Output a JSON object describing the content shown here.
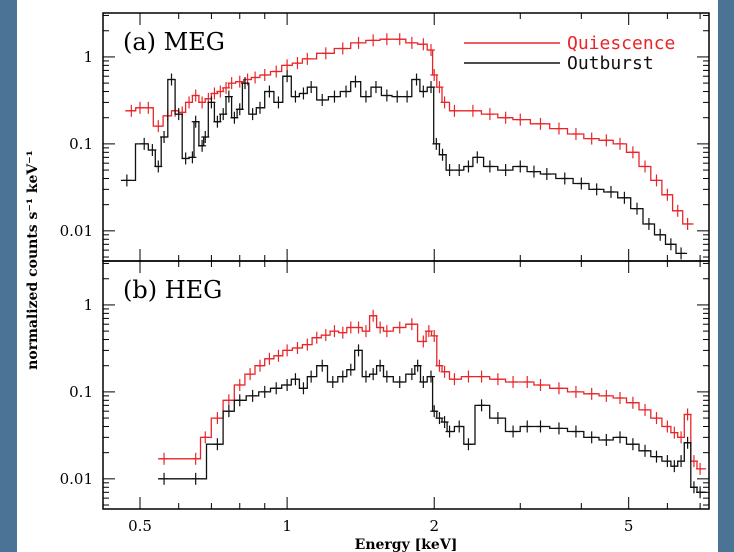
{
  "chart_data": [
    {
      "type": "line",
      "panel_label": "(a) MEG",
      "xscale": "log",
      "yscale": "log",
      "xlim": [
        0.42,
        7.3
      ],
      "ylim": [
        0.0045,
        3.2
      ],
      "ylabel": "normalized counts s⁻¹ keV⁻¹",
      "xlabel": "",
      "legend": {
        "placement": "top-right"
      },
      "series": [
        {
          "name": "Quiescence",
          "color": "#e8262a",
          "x": [
            0.48,
            0.5,
            0.52,
            0.545,
            0.57,
            0.59,
            0.61,
            0.63,
            0.65,
            0.67,
            0.69,
            0.71,
            0.73,
            0.75,
            0.77,
            0.8,
            0.83,
            0.86,
            0.9,
            0.95,
            1.0,
            1.05,
            1.1,
            1.2,
            1.3,
            1.4,
            1.5,
            1.6,
            1.7,
            1.8,
            1.9,
            1.97,
            2.0,
            2.05,
            2.1,
            2.2,
            2.4,
            2.6,
            2.8,
            3.0,
            3.3,
            3.6,
            3.9,
            4.2,
            4.5,
            4.8,
            5.1,
            5.4,
            5.7,
            6.0,
            6.3,
            6.6
          ],
          "y": [
            0.24,
            0.26,
            0.26,
            0.16,
            0.21,
            0.24,
            0.23,
            0.3,
            0.36,
            0.3,
            0.33,
            0.38,
            0.4,
            0.44,
            0.5,
            0.52,
            0.55,
            0.58,
            0.62,
            0.68,
            0.8,
            0.85,
            0.95,
            1.1,
            1.25,
            1.45,
            1.55,
            1.6,
            1.6,
            1.45,
            1.4,
            1.2,
            0.62,
            0.45,
            0.3,
            0.24,
            0.24,
            0.22,
            0.2,
            0.19,
            0.17,
            0.15,
            0.13,
            0.115,
            0.11,
            0.1,
            0.08,
            0.055,
            0.038,
            0.026,
            0.017,
            0.012
          ]
        },
        {
          "name": "Outburst",
          "color": "#111111",
          "x": [
            0.47,
            0.51,
            0.53,
            0.545,
            0.56,
            0.58,
            0.6,
            0.62,
            0.64,
            0.65,
            0.67,
            0.68,
            0.7,
            0.72,
            0.74,
            0.76,
            0.78,
            0.8,
            0.82,
            0.85,
            0.88,
            0.92,
            0.96,
            1.0,
            1.04,
            1.08,
            1.12,
            1.18,
            1.25,
            1.32,
            1.38,
            1.45,
            1.52,
            1.6,
            1.68,
            1.76,
            1.84,
            1.9,
            1.97,
            2.02,
            2.08,
            2.15,
            2.25,
            2.35,
            2.45,
            2.6,
            2.8,
            3.0,
            3.2,
            3.4,
            3.7,
            4.0,
            4.3,
            4.6,
            4.9,
            5.2,
            5.5,
            5.8,
            6.1,
            6.4
          ],
          "y": [
            0.038,
            0.1,
            0.085,
            0.055,
            0.12,
            0.55,
            0.22,
            0.068,
            0.07,
            0.18,
            0.095,
            0.12,
            0.3,
            0.18,
            0.22,
            0.35,
            0.2,
            0.25,
            0.5,
            0.22,
            0.26,
            0.4,
            0.3,
            0.6,
            0.35,
            0.38,
            0.45,
            0.32,
            0.35,
            0.4,
            0.52,
            0.35,
            0.45,
            0.36,
            0.35,
            0.35,
            0.55,
            0.4,
            0.45,
            0.1,
            0.075,
            0.05,
            0.05,
            0.055,
            0.07,
            0.055,
            0.05,
            0.055,
            0.048,
            0.045,
            0.04,
            0.035,
            0.03,
            0.028,
            0.024,
            0.018,
            0.012,
            0.009,
            0.007,
            0.0055
          ]
        }
      ],
      "y_ticks": [
        {
          "value": 0.01,
          "label": "0.01"
        },
        {
          "value": 0.1,
          "label": "0.1"
        },
        {
          "value": 1,
          "label": "1"
        }
      ]
    },
    {
      "type": "line",
      "panel_label": "(b) HEG",
      "xscale": "log",
      "yscale": "log",
      "xlim": [
        0.42,
        7.3
      ],
      "ylim": [
        0.0045,
        3.2
      ],
      "ylabel": "",
      "xlabel": "Energy [keV]",
      "series": [
        {
          "name": "Quiescence",
          "color": "#e8262a",
          "x": [
            0.56,
            0.65,
            0.68,
            0.72,
            0.76,
            0.8,
            0.84,
            0.88,
            0.92,
            0.96,
            1.0,
            1.05,
            1.1,
            1.15,
            1.2,
            1.25,
            1.3,
            1.35,
            1.4,
            1.45,
            1.5,
            1.55,
            1.6,
            1.7,
            1.8,
            1.9,
            1.95,
            2.0,
            2.05,
            2.1,
            2.2,
            2.35,
            2.5,
            2.7,
            2.9,
            3.1,
            3.3,
            3.6,
            3.9,
            4.2,
            4.5,
            4.8,
            5.1,
            5.4,
            5.7,
            6.0,
            6.2,
            6.4,
            6.6,
            6.8,
            7.0
          ],
          "y": [
            0.017,
            0.017,
            0.03,
            0.05,
            0.08,
            0.12,
            0.16,
            0.2,
            0.24,
            0.26,
            0.3,
            0.32,
            0.35,
            0.42,
            0.45,
            0.5,
            0.48,
            0.55,
            0.55,
            0.5,
            0.75,
            0.55,
            0.5,
            0.55,
            0.6,
            0.38,
            0.5,
            0.44,
            0.2,
            0.17,
            0.14,
            0.15,
            0.15,
            0.14,
            0.13,
            0.13,
            0.12,
            0.11,
            0.1,
            0.095,
            0.09,
            0.085,
            0.075,
            0.062,
            0.05,
            0.04,
            0.034,
            0.03,
            0.055,
            0.016,
            0.013
          ]
        },
        {
          "name": "Outburst",
          "color": "#111111",
          "x": [
            0.56,
            0.65,
            0.72,
            0.76,
            0.8,
            0.85,
            0.9,
            0.95,
            1.0,
            1.04,
            1.08,
            1.12,
            1.18,
            1.24,
            1.3,
            1.35,
            1.4,
            1.45,
            1.5,
            1.55,
            1.6,
            1.7,
            1.8,
            1.85,
            1.9,
            1.97,
            2.0,
            2.05,
            2.1,
            2.15,
            2.25,
            2.35,
            2.5,
            2.7,
            2.9,
            3.1,
            3.3,
            3.6,
            3.9,
            4.2,
            4.5,
            4.8,
            5.1,
            5.4,
            5.7,
            6.0,
            6.2,
            6.4,
            6.6,
            6.8,
            7.0
          ],
          "y": [
            0.01,
            0.01,
            0.025,
            0.06,
            0.08,
            0.09,
            0.1,
            0.11,
            0.12,
            0.14,
            0.11,
            0.15,
            0.2,
            0.13,
            0.15,
            0.18,
            0.3,
            0.15,
            0.16,
            0.2,
            0.15,
            0.13,
            0.16,
            0.2,
            0.13,
            0.15,
            0.06,
            0.05,
            0.045,
            0.035,
            0.04,
            0.025,
            0.07,
            0.05,
            0.035,
            0.04,
            0.04,
            0.038,
            0.035,
            0.03,
            0.028,
            0.03,
            0.025,
            0.021,
            0.018,
            0.016,
            0.014,
            0.016,
            0.026,
            0.008,
            0.007
          ]
        }
      ],
      "x_ticks": [
        {
          "value": 0.5,
          "label": "0.5"
        },
        {
          "value": 1,
          "label": "1"
        },
        {
          "value": 2,
          "label": "2"
        },
        {
          "value": 5,
          "label": "5"
        }
      ],
      "y_ticks": [
        {
          "value": 0.01,
          "label": "0.01"
        },
        {
          "value": 0.1,
          "label": "0.1"
        },
        {
          "value": 1,
          "label": "1"
        }
      ]
    }
  ]
}
